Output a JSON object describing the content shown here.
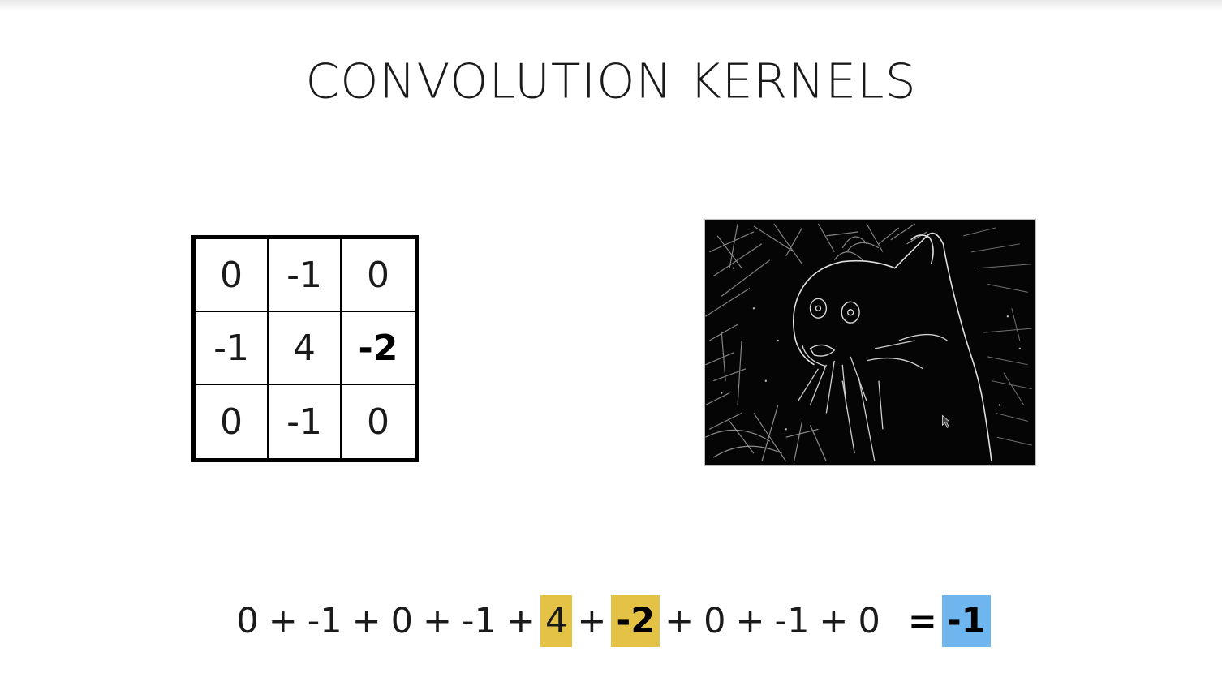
{
  "slide": {
    "title": "CONVOLUTION KERNELS"
  },
  "kernel": {
    "cells": [
      "0",
      "-1",
      "0",
      "-1",
      "4",
      "-2",
      "0",
      "-1",
      "0"
    ]
  },
  "image": {
    "icon": "edge-detected-panda-image"
  },
  "equation": {
    "t1": "0",
    "op1": "+",
    "t2": "-1",
    "op2": "+",
    "t3": "0",
    "op3": "+",
    "t4": "-1",
    "op4": "+",
    "t5": "4",
    "op5": "+",
    "t6": "-2",
    "op6": "+",
    "t7": "0",
    "op7": "+",
    "t8": "-1",
    "op8": "+",
    "t9": "0",
    "equals": "=",
    "result": "-1"
  },
  "colors": {
    "highlight_yellow": "#e3c246",
    "highlight_blue": "#6fb5ee"
  }
}
